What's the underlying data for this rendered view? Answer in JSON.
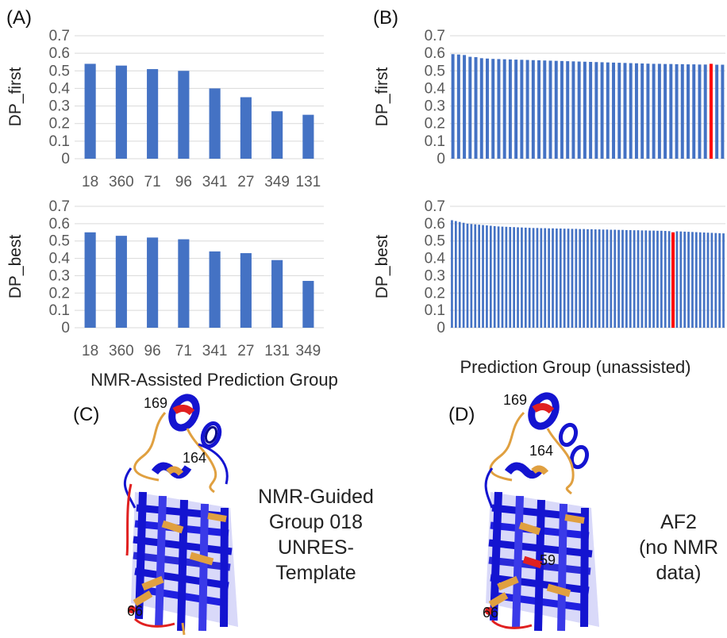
{
  "panels": {
    "A": "(A)",
    "B": "(B)",
    "C": "(C)",
    "D": "(D)"
  },
  "xlabels": {
    "left": "NMR-Assisted Prediction Group",
    "right": "Prediction Group (unassisted)"
  },
  "structures": {
    "c_caption": [
      "NMR-Guided",
      "Group 018",
      "UNRES-",
      "Template"
    ],
    "d_caption": [
      "AF2",
      "(no NMR",
      "data)"
    ],
    "c_labels": [
      "169",
      "164",
      "66"
    ],
    "d_labels": [
      "169",
      "164",
      "59",
      "66"
    ]
  },
  "colors": {
    "bar": "#4472c4",
    "highlight": "#ff0000",
    "grid": "#d9d9d9",
    "ribbon": "#1414d0",
    "ribbon_dark": "#0a0a8a",
    "loop_orange": "#e0a040",
    "residue_red": "#e02020"
  },
  "chart_data": [
    {
      "type": "bar",
      "panel": "A",
      "ylabel": "DP_first",
      "ylim": [
        0,
        0.7
      ],
      "yticks": [
        "0",
        "0.1",
        "0.2",
        "0.3",
        "0.4",
        "0.5",
        "0.6",
        "0.7"
      ],
      "grid": true,
      "categories": [
        "18",
        "360",
        "71",
        "96",
        "341",
        "27",
        "349",
        "131"
      ],
      "values": [
        0.54,
        0.53,
        0.51,
        0.5,
        0.4,
        0.35,
        0.27,
        0.25
      ]
    },
    {
      "type": "bar",
      "panel": "A",
      "ylabel": "DP_best",
      "ylim": [
        0,
        0.7
      ],
      "yticks": [
        "0",
        "0.1",
        "0.2",
        "0.3",
        "0.4",
        "0.5",
        "0.6",
        "0.7"
      ],
      "grid": true,
      "categories": [
        "18",
        "360",
        "96",
        "71",
        "341",
        "27",
        "131",
        "349"
      ],
      "values": [
        0.55,
        0.53,
        0.52,
        0.51,
        0.44,
        0.43,
        0.39,
        0.27
      ]
    },
    {
      "type": "bar",
      "panel": "B",
      "ylabel": "DP_first",
      "ylim": [
        0,
        0.7
      ],
      "yticks": [
        "0",
        "0.1",
        "0.2",
        "0.3",
        "0.4",
        "0.5",
        "0.6",
        "0.7"
      ],
      "grid": true,
      "highlight_index": 45,
      "values": [
        0.595,
        0.593,
        0.59,
        0.58,
        0.578,
        0.572,
        0.57,
        0.568,
        0.567,
        0.566,
        0.565,
        0.564,
        0.563,
        0.562,
        0.561,
        0.56,
        0.559,
        0.558,
        0.557,
        0.556,
        0.555,
        0.554,
        0.553,
        0.552,
        0.551,
        0.55,
        0.549,
        0.548,
        0.547,
        0.546,
        0.545,
        0.544,
        0.543,
        0.542,
        0.541,
        0.54,
        0.54,
        0.539,
        0.539,
        0.538,
        0.538,
        0.537,
        0.537,
        0.536,
        0.536,
        0.54,
        0.535,
        0.535
      ]
    },
    {
      "type": "bar",
      "panel": "B",
      "ylabel": "DP_best",
      "ylim": [
        0,
        0.7
      ],
      "yticks": [
        "0",
        "0.1",
        "0.2",
        "0.3",
        "0.4",
        "0.5",
        "0.6",
        "0.7"
      ],
      "grid": true,
      "highlight_index": 57,
      "values": [
        0.62,
        0.615,
        0.61,
        0.605,
        0.6,
        0.598,
        0.596,
        0.594,
        0.592,
        0.59,
        0.588,
        0.586,
        0.584,
        0.583,
        0.582,
        0.581,
        0.58,
        0.579,
        0.578,
        0.577,
        0.576,
        0.575,
        0.575,
        0.574,
        0.574,
        0.573,
        0.573,
        0.572,
        0.572,
        0.571,
        0.571,
        0.57,
        0.57,
        0.569,
        0.569,
        0.568,
        0.568,
        0.567,
        0.567,
        0.566,
        0.566,
        0.565,
        0.565,
        0.564,
        0.564,
        0.563,
        0.563,
        0.562,
        0.562,
        0.561,
        0.561,
        0.56,
        0.56,
        0.559,
        0.559,
        0.558,
        0.557,
        0.55,
        0.556,
        0.555,
        0.554,
        0.553,
        0.552,
        0.551,
        0.55,
        0.549,
        0.548,
        0.547,
        0.546,
        0.545,
        0.544
      ]
    }
  ]
}
